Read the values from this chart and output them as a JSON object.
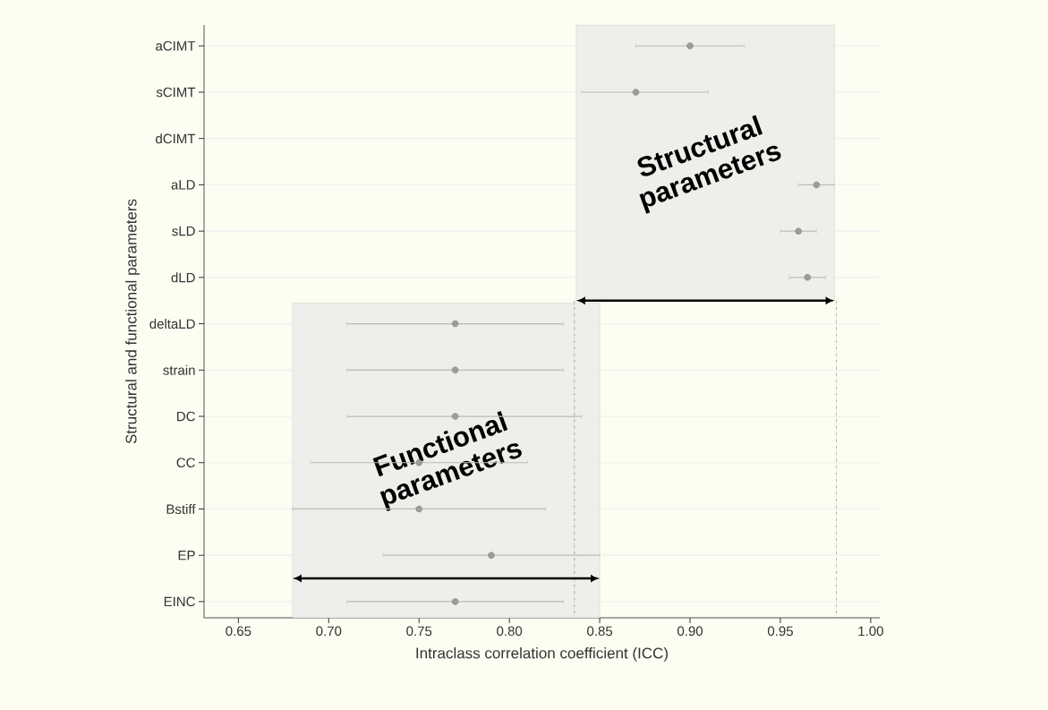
{
  "chart_data": {
    "type": "scatter",
    "orientation": "horizontal",
    "xlabel": "Intraclass correlation coefficient (ICC)",
    "ylabel": "Structural and functional parameters",
    "categories": [
      "aCIMT",
      "sCIMT",
      "dCIMT",
      "aLD",
      "sLD",
      "dLD",
      "deltaLD",
      "strain",
      "DC",
      "CC",
      "Bstiff",
      "EP",
      "EINC"
    ],
    "values": [
      0.9,
      0.87,
      null,
      0.97,
      0.96,
      0.965,
      0.77,
      0.77,
      0.77,
      0.75,
      0.75,
      0.79,
      0.77
    ],
    "errors": [
      [
        0.87,
        0.93
      ],
      [
        0.84,
        0.91
      ],
      null,
      [
        0.96,
        0.98
      ],
      [
        0.95,
        0.97
      ],
      [
        0.955,
        0.975
      ],
      [
        0.71,
        0.83
      ],
      [
        0.71,
        0.83
      ],
      [
        0.71,
        0.84
      ],
      [
        0.69,
        0.81
      ],
      [
        0.68,
        0.82
      ],
      [
        0.73,
        0.85
      ],
      [
        0.71,
        0.83
      ]
    ],
    "color": "#9c9c9c",
    "marker": "circle",
    "xlim": [
      0.631,
      1.005
    ],
    "xticks": [
      0.65,
      {
        "value": 0.7,
        "label": "0.70"
      },
      0.75,
      {
        "value": 0.8,
        "label": "0.80"
      },
      0.85,
      {
        "value": 0.9,
        "label": "0.90"
      },
      0.95,
      {
        "value": 1.0,
        "label": "1.00"
      }
    ],
    "grid": "y",
    "bands": [
      {
        "axis": "x",
        "from": 0.837,
        "to": 0.98,
        "label": "Structural parameters",
        "color": "#efeeea"
      },
      {
        "axis": "x",
        "from": 0.68,
        "to": 0.85,
        "label": "Functional parameters",
        "color": "#efeeea"
      }
    ],
    "ref_lines": [
      {
        "axis": "x",
        "value": 0.836,
        "line_style": "dashdotted"
      },
      {
        "axis": "x",
        "value": 0.981,
        "line_style": "dashdotted"
      }
    ]
  }
}
